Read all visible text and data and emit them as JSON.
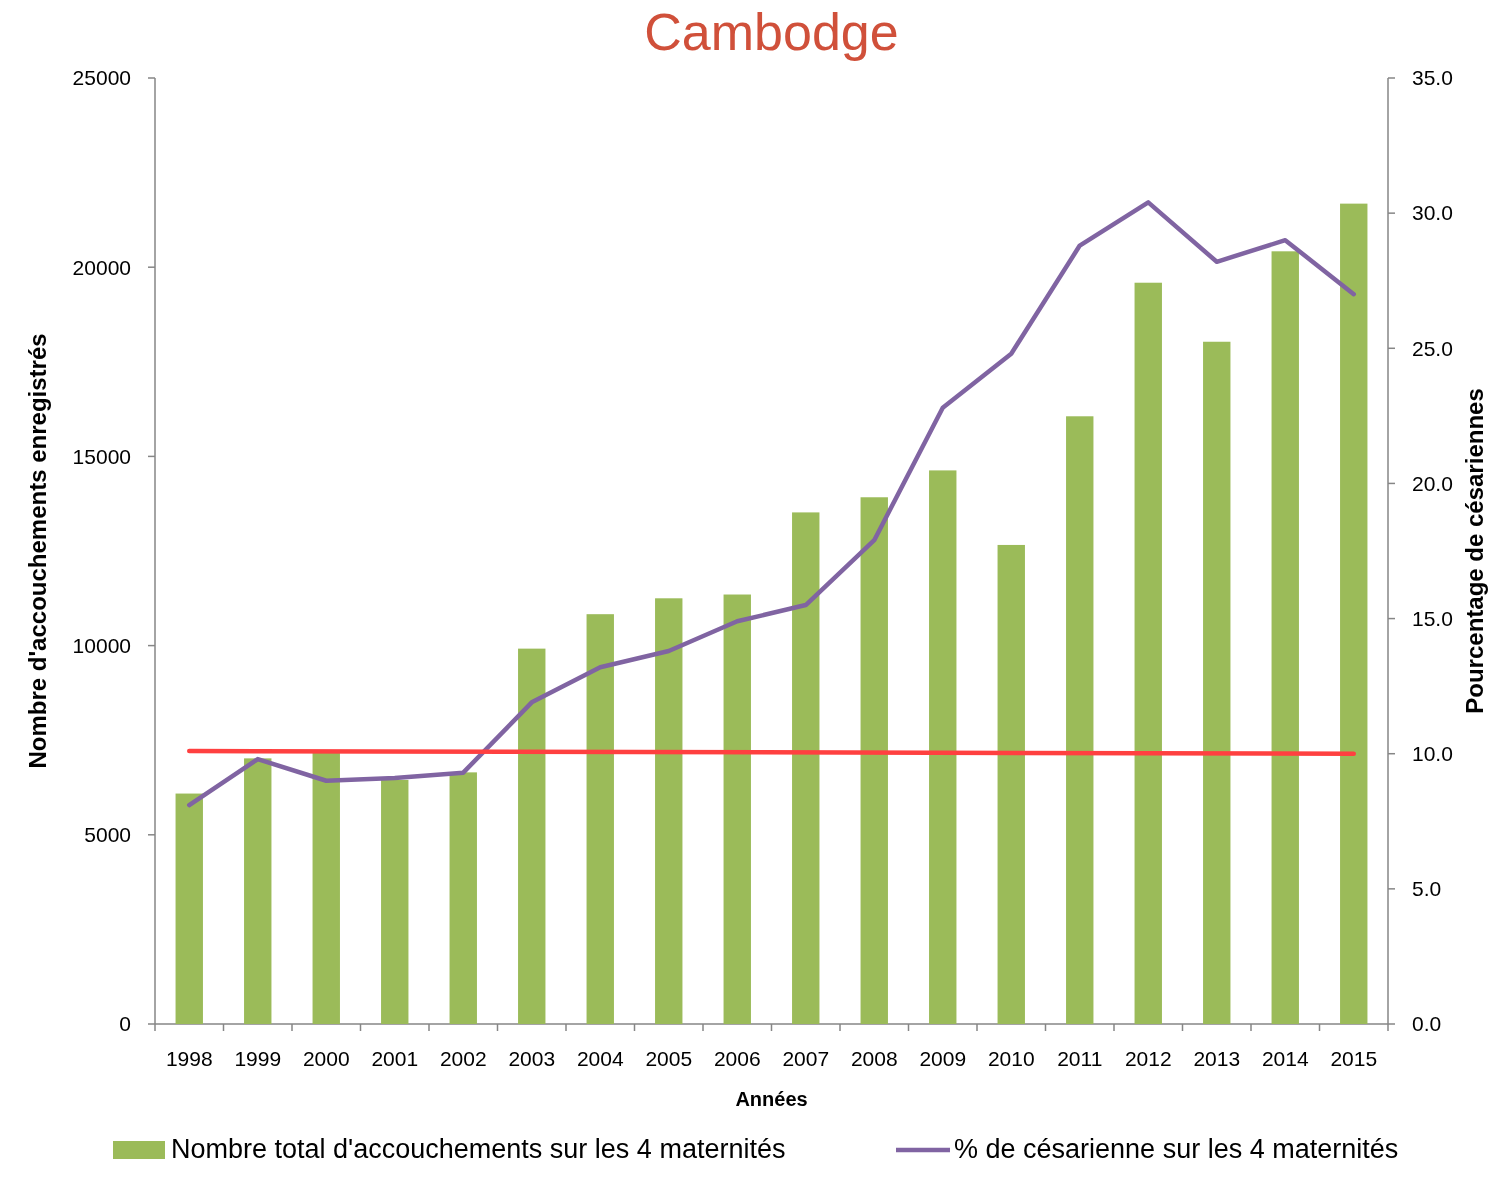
{
  "chart_data": {
    "type": "bar",
    "title": "Cambodge",
    "xlabel": "Années",
    "ylabel": "Nombre d'accouchements enregistrés",
    "y2label": "Pourcentage de césariennes",
    "categories": [
      "1998",
      "1999",
      "2000",
      "2001",
      "2002",
      "2003",
      "2004",
      "2005",
      "2006",
      "2007",
      "2008",
      "2009",
      "2010",
      "2011",
      "2012",
      "2013",
      "2014",
      "2015"
    ],
    "series": [
      {
        "name": "Nombre total d'accouchements sur les 4 maternités",
        "color": "#9bbb59",
        "values": [
          6090,
          7020,
          7230,
          6450,
          6650,
          9920,
          10830,
          11250,
          11350,
          13520,
          13920,
          14630,
          12660,
          16060,
          19590,
          18030,
          20420,
          21680
        ]
      },
      {
        "type": "line",
        "axis": "y2",
        "name": "% de césarienne sur les 4 maternités",
        "color": "#8064a2",
        "values": [
          8.1,
          9.8,
          9.0,
          9.1,
          9.3,
          11.9,
          13.2,
          13.8,
          14.9,
          15.5,
          17.9,
          22.8,
          24.8,
          28.8,
          30.4,
          28.2,
          29.0,
          27.0
        ]
      },
      {
        "type": "line",
        "axis": "y2",
        "color": "#ff4040",
        "values": [
          10.1,
          null,
          null,
          null,
          null,
          null,
          null,
          null,
          null,
          null,
          null,
          null,
          null,
          null,
          null,
          null,
          null,
          10.0
        ]
      }
    ],
    "ylim": [
      0,
      25000
    ],
    "yticks": [
      0,
      5000,
      10000,
      15000,
      20000,
      25000
    ],
    "y2lim": [
      0,
      35
    ],
    "y2ticks": [
      {
        "value": 0,
        "label": "0.0"
      },
      {
        "value": 5,
        "label": "5.0"
      },
      {
        "value": 10,
        "label": "10.0"
      },
      {
        "value": 15,
        "label": "15.0"
      },
      {
        "value": 20,
        "label": "20.0"
      },
      {
        "value": 25,
        "label": "25.0"
      },
      {
        "value": 30,
        "label": "30.0"
      },
      {
        "value": 35,
        "label": "35.0"
      }
    ],
    "legend": "bottom",
    "grid": false
  }
}
